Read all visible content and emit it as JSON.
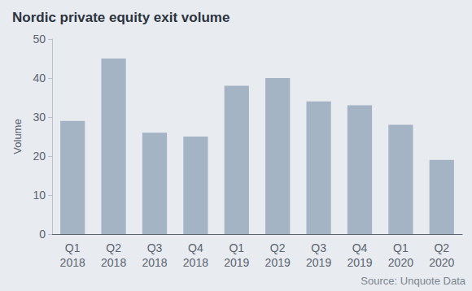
{
  "chart_data": {
    "type": "bar",
    "title": "Nordic private equity exit volume",
    "y_label": "Volume",
    "source": "Source: Unquote Data",
    "categories": [
      "Q1\n2018",
      "Q2\n2018",
      "Q3\n2018",
      "Q4\n2018",
      "Q1\n2019",
      "Q2\n2019",
      "Q3\n2019",
      "Q4\n2019",
      "Q1\n2020",
      "Q2\n2020"
    ],
    "values": [
      29,
      45,
      26,
      25,
      38,
      40,
      34,
      33,
      28,
      19
    ],
    "color": "#a4b4c5",
    "ylim": [
      0,
      50
    ],
    "yticks": [
      0,
      10,
      20,
      30,
      40,
      50
    ],
    "grid": false
  }
}
